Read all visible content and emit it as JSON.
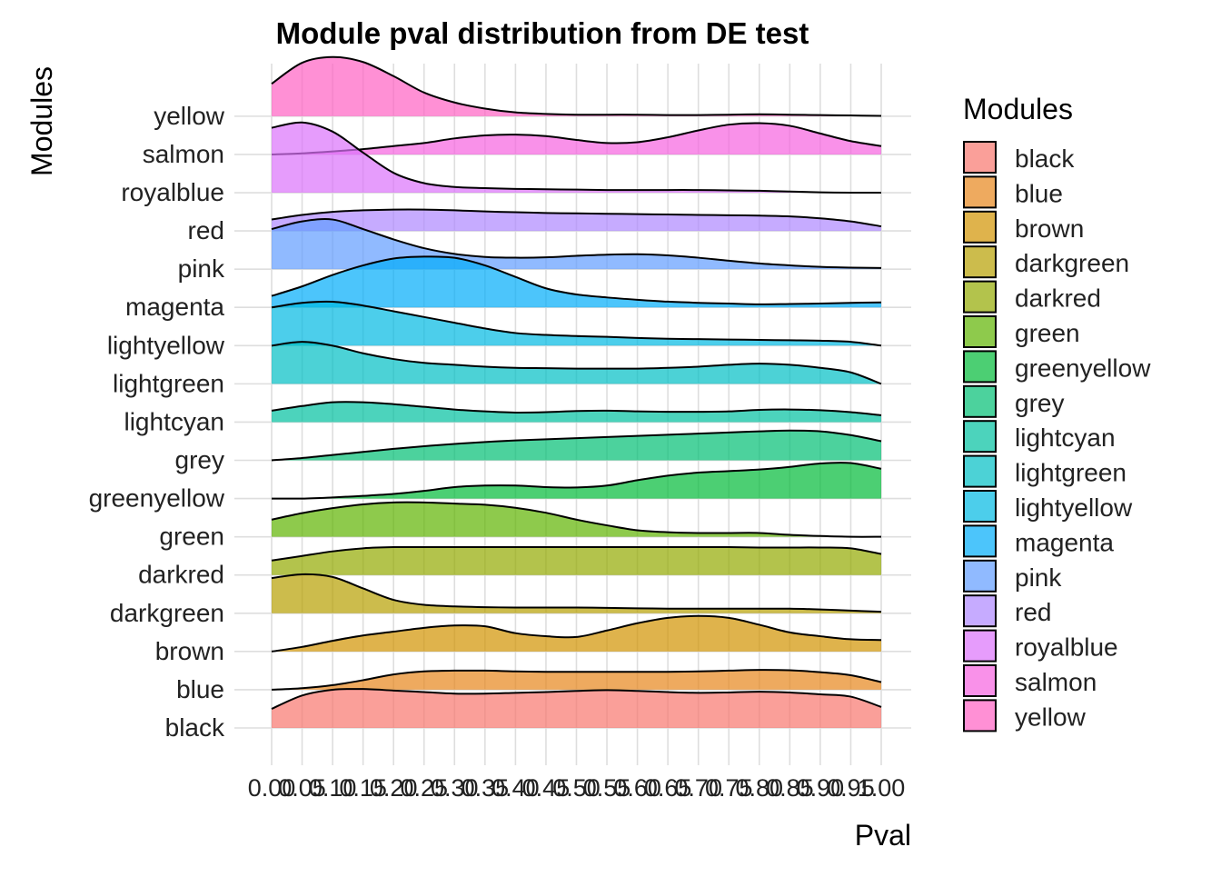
{
  "chart_data": {
    "type": "ridgeline",
    "title": "Module pval distribution from DE test",
    "xlabel": "Pval",
    "ylabel": "Modules",
    "xlim": [
      0,
      1
    ],
    "x_ticks": [
      "0.00",
      "0.05",
      "0.10",
      "0.15",
      "0.20",
      "0.25",
      "0.30",
      "0.35",
      "0.40",
      "0.45",
      "0.50",
      "0.55",
      "0.60",
      "0.65",
      "0.70",
      "0.75",
      "0.80",
      "0.85",
      "0.90",
      "0.95",
      "1.00"
    ],
    "grid": true,
    "legend_title": "Modules",
    "legend_position": "right",
    "density_x": [
      0,
      0.05,
      0.1,
      0.15,
      0.2,
      0.25,
      0.3,
      0.35,
      0.4,
      0.45,
      0.5,
      0.55,
      0.6,
      0.65,
      0.7,
      0.75,
      0.8,
      0.85,
      0.9,
      0.95,
      1.0
    ],
    "series": [
      {
        "name": "black",
        "color": "#F8766D",
        "density": [
          0.5,
          0.85,
          1.0,
          1.02,
          0.98,
          0.94,
          0.9,
          0.9,
          0.92,
          0.94,
          0.97,
          0.99,
          0.97,
          0.94,
          0.92,
          0.93,
          0.95,
          0.93,
          0.88,
          0.82,
          0.55
        ]
      },
      {
        "name": "blue",
        "color": "#E7861B",
        "density": [
          0.0,
          0.04,
          0.12,
          0.25,
          0.4,
          0.48,
          0.5,
          0.5,
          0.48,
          0.47,
          0.47,
          0.47,
          0.47,
          0.47,
          0.48,
          0.5,
          0.52,
          0.51,
          0.46,
          0.38,
          0.2
        ]
      },
      {
        "name": "brown",
        "color": "#D19300",
        "density": [
          0.0,
          0.12,
          0.28,
          0.42,
          0.52,
          0.62,
          0.68,
          0.66,
          0.48,
          0.4,
          0.38,
          0.55,
          0.74,
          0.88,
          0.93,
          0.88,
          0.7,
          0.5,
          0.4,
          0.32,
          0.3
        ]
      },
      {
        "name": "darkgreen",
        "color": "#B79F00",
        "density": [
          0.92,
          1.02,
          0.95,
          0.65,
          0.35,
          0.22,
          0.18,
          0.16,
          0.15,
          0.15,
          0.15,
          0.14,
          0.13,
          0.12,
          0.12,
          0.12,
          0.12,
          0.12,
          0.1,
          0.07,
          0.04
        ]
      },
      {
        "name": "darkred",
        "color": "#93AA00",
        "density": [
          0.38,
          0.5,
          0.62,
          0.7,
          0.73,
          0.73,
          0.73,
          0.73,
          0.73,
          0.73,
          0.73,
          0.73,
          0.73,
          0.73,
          0.73,
          0.73,
          0.72,
          0.72,
          0.72,
          0.7,
          0.55
        ]
      },
      {
        "name": "green",
        "color": "#5EB300",
        "density": [
          0.45,
          0.62,
          0.75,
          0.85,
          0.9,
          0.9,
          0.87,
          0.84,
          0.76,
          0.63,
          0.45,
          0.3,
          0.17,
          0.12,
          0.1,
          0.1,
          0.1,
          0.05,
          0.02,
          0.0,
          0.0
        ]
      },
      {
        "name": "greenyellow",
        "color": "#00BA38",
        "density": [
          0.0,
          0.0,
          0.03,
          0.07,
          0.12,
          0.2,
          0.3,
          0.34,
          0.34,
          0.3,
          0.29,
          0.34,
          0.48,
          0.6,
          0.68,
          0.72,
          0.76,
          0.83,
          0.92,
          0.93,
          0.78
        ]
      },
      {
        "name": "grey",
        "color": "#00BF74",
        "density": [
          0.0,
          0.06,
          0.14,
          0.22,
          0.3,
          0.37,
          0.43,
          0.48,
          0.52,
          0.55,
          0.58,
          0.61,
          0.64,
          0.67,
          0.7,
          0.73,
          0.76,
          0.78,
          0.76,
          0.66,
          0.5
        ]
      },
      {
        "name": "lightcyan",
        "color": "#00C19F",
        "density": [
          0.3,
          0.42,
          0.52,
          0.52,
          0.47,
          0.4,
          0.33,
          0.28,
          0.25,
          0.26,
          0.29,
          0.3,
          0.28,
          0.27,
          0.27,
          0.28,
          0.32,
          0.33,
          0.31,
          0.26,
          0.18
        ]
      },
      {
        "name": "lightgreen",
        "color": "#00BFC4",
        "density": [
          1.0,
          1.1,
          1.0,
          0.8,
          0.65,
          0.55,
          0.5,
          0.45,
          0.42,
          0.41,
          0.4,
          0.4,
          0.4,
          0.42,
          0.45,
          0.5,
          0.53,
          0.5,
          0.42,
          0.3,
          0.0
        ]
      },
      {
        "name": "lightyellow",
        "color": "#00B9E3",
        "density": [
          1.0,
          1.12,
          1.15,
          1.05,
          0.9,
          0.75,
          0.6,
          0.45,
          0.33,
          0.28,
          0.25,
          0.23,
          0.2,
          0.18,
          0.17,
          0.16,
          0.15,
          0.14,
          0.13,
          0.1,
          0.0
        ]
      },
      {
        "name": "magenta",
        "color": "#00ADFA",
        "density": [
          0.3,
          0.55,
          0.85,
          1.1,
          1.28,
          1.33,
          1.3,
          1.1,
          0.8,
          0.5,
          0.34,
          0.26,
          0.2,
          0.15,
          0.12,
          0.1,
          0.08,
          0.09,
          0.1,
          0.12,
          0.13
        ]
      },
      {
        "name": "pink",
        "color": "#619CFF",
        "density": [
          1.05,
          1.25,
          1.3,
          1.05,
          0.78,
          0.55,
          0.4,
          0.32,
          0.3,
          0.31,
          0.35,
          0.38,
          0.39,
          0.36,
          0.3,
          0.22,
          0.15,
          0.1,
          0.06,
          0.04,
          0.03
        ]
      },
      {
        "name": "red",
        "color": "#AE87FF",
        "density": [
          0.3,
          0.42,
          0.5,
          0.54,
          0.56,
          0.56,
          0.54,
          0.51,
          0.49,
          0.47,
          0.46,
          0.45,
          0.44,
          0.43,
          0.42,
          0.41,
          0.4,
          0.38,
          0.33,
          0.25,
          0.12
        ]
      },
      {
        "name": "royalblue",
        "color": "#DB72FB",
        "density": [
          1.7,
          1.84,
          1.6,
          1.05,
          0.52,
          0.25,
          0.15,
          0.12,
          0.1,
          0.09,
          0.08,
          0.07,
          0.07,
          0.07,
          0.07,
          0.06,
          0.05,
          0.03,
          0.01,
          0.0,
          0.0
        ]
      },
      {
        "name": "salmon",
        "color": "#F763E0",
        "density": [
          0.0,
          0.03,
          0.08,
          0.14,
          0.22,
          0.3,
          0.42,
          0.5,
          0.52,
          0.48,
          0.38,
          0.3,
          0.32,
          0.45,
          0.63,
          0.78,
          0.82,
          0.75,
          0.55,
          0.35,
          0.22
        ]
      },
      {
        "name": "yellow",
        "color": "#FF61C3",
        "density": [
          0.85,
          1.4,
          1.55,
          1.42,
          1.05,
          0.62,
          0.36,
          0.2,
          0.1,
          0.06,
          0.04,
          0.04,
          0.04,
          0.03,
          0.03,
          0.04,
          0.05,
          0.04,
          0.03,
          0.02,
          0.01
        ]
      }
    ]
  }
}
